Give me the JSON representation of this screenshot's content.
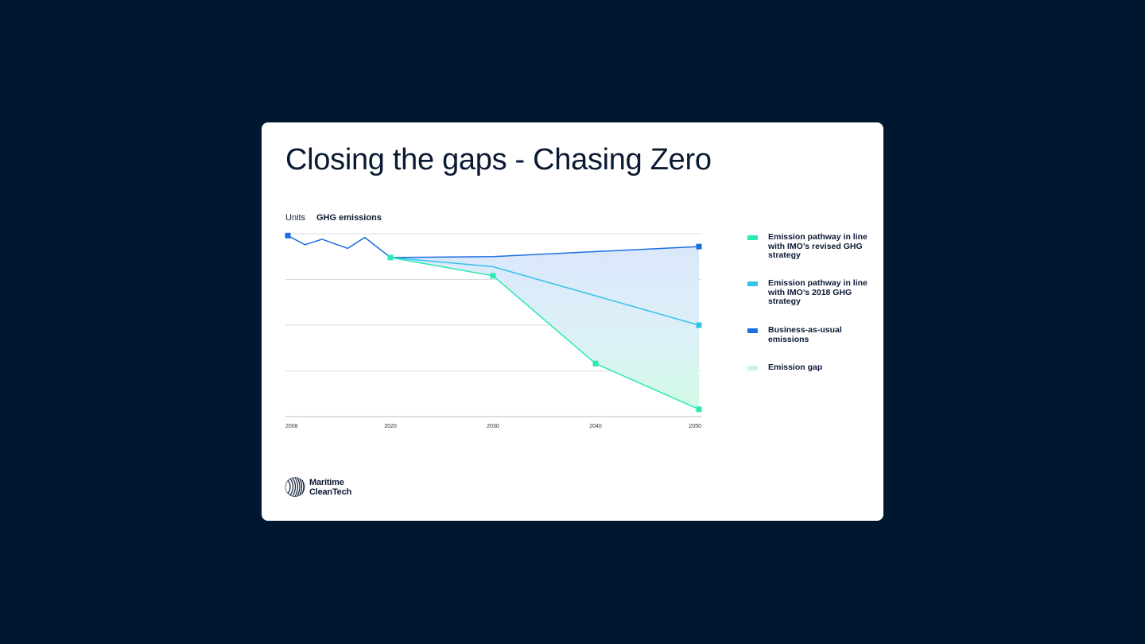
{
  "title": "Closing the gaps - Chasing Zero",
  "units_label": "Units",
  "units_value": "GHG emissions",
  "logo": {
    "line1": "Maritime",
    "line2": "CleanTech"
  },
  "chart_data": {
    "type": "line",
    "xlim": [
      2008,
      2050
    ],
    "xticks": [
      2008,
      2020,
      2030,
      2040,
      2050
    ],
    "ylim": [
      0,
      100
    ],
    "ygrid": [
      0,
      25,
      50,
      75,
      100
    ],
    "legend": "right",
    "series": [
      {
        "name": "Emission pathway in line with IMO’s revised GHG strategy",
        "color": "#2de8b4",
        "x": [
          2020,
          2030,
          2040,
          2050
        ],
        "values": [
          87,
          77,
          29,
          4
        ],
        "markers": "all"
      },
      {
        "name": "Emission pathway in line with IMO’s 2018 GHG strategy",
        "color": "#35c3ea",
        "x": [
          2020,
          2030,
          2050
        ],
        "values": [
          87,
          82,
          50
        ],
        "markers": "last"
      },
      {
        "name": "Business-as-usual emissions",
        "color": "#1b6fe0",
        "x": [
          2008,
          2010,
          2012,
          2015,
          2017,
          2020,
          2030,
          2050
        ],
        "values": [
          99,
          94,
          97,
          92,
          98,
          87,
          87.5,
          93
        ],
        "markers": "ends"
      },
      {
        "name": "Emission gap",
        "color": "#cdeef5"
      }
    ]
  }
}
